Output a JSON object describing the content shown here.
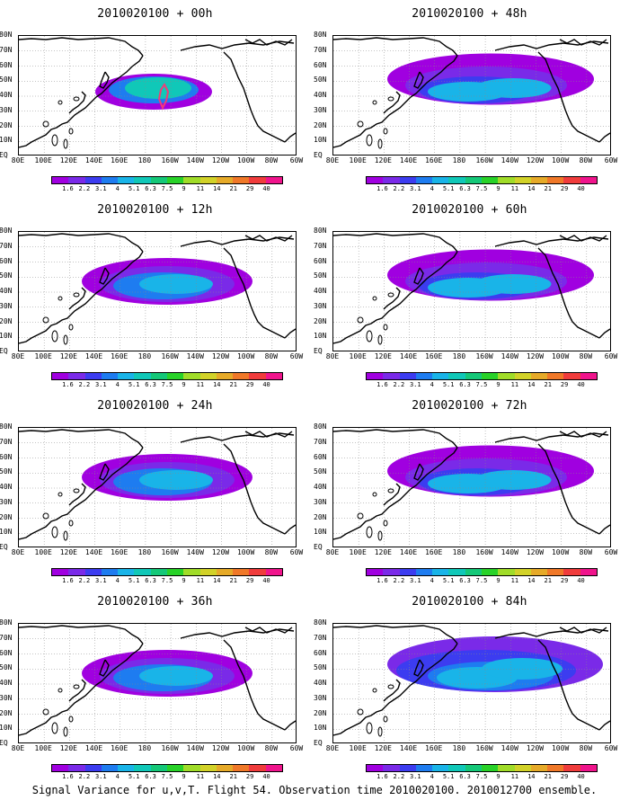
{
  "panels": [
    {
      "title": "2010020100 + 00h",
      "level": 0
    },
    {
      "title": "2010020100 + 48h",
      "level": 2
    },
    {
      "title": "2010020100 + 12h",
      "level": 1
    },
    {
      "title": "2010020100 + 60h",
      "level": 2
    },
    {
      "title": "2010020100 + 24h",
      "level": 1
    },
    {
      "title": "2010020100 + 72h",
      "level": 2
    },
    {
      "title": "2010020100 + 36h",
      "level": 1
    },
    {
      "title": "2010020100 + 84h",
      "level": 3
    }
  ],
  "lat_labels": [
    "80N",
    "70N",
    "60N",
    "50N",
    "40N",
    "30N",
    "20N",
    "10N",
    "EQ"
  ],
  "lon_labels": [
    "80E",
    "100E",
    "120E",
    "140E",
    "160E",
    "180",
    "160W",
    "140W",
    "120W",
    "100W",
    "80W",
    "60W"
  ],
  "colorbar": {
    "labels": [
      "1.6",
      "2.2",
      "3.1",
      "4",
      "5.1",
      "6.3",
      "7.5",
      "9",
      "11",
      "14",
      "21",
      "29",
      "40"
    ],
    "colors": [
      "#a000e0",
      "#7a2ae8",
      "#3c3cf0",
      "#1e7cf0",
      "#19b4e8",
      "#10c8b8",
      "#14c878",
      "#28d228",
      "#a0dc28",
      "#d2d228",
      "#e6aa28",
      "#f07828",
      "#f03c3c",
      "#f0148c"
    ]
  },
  "footer": "Signal Variance for u,v,T. Flight 54. Observation time 2010020100. 2010012700 ensemble."
}
